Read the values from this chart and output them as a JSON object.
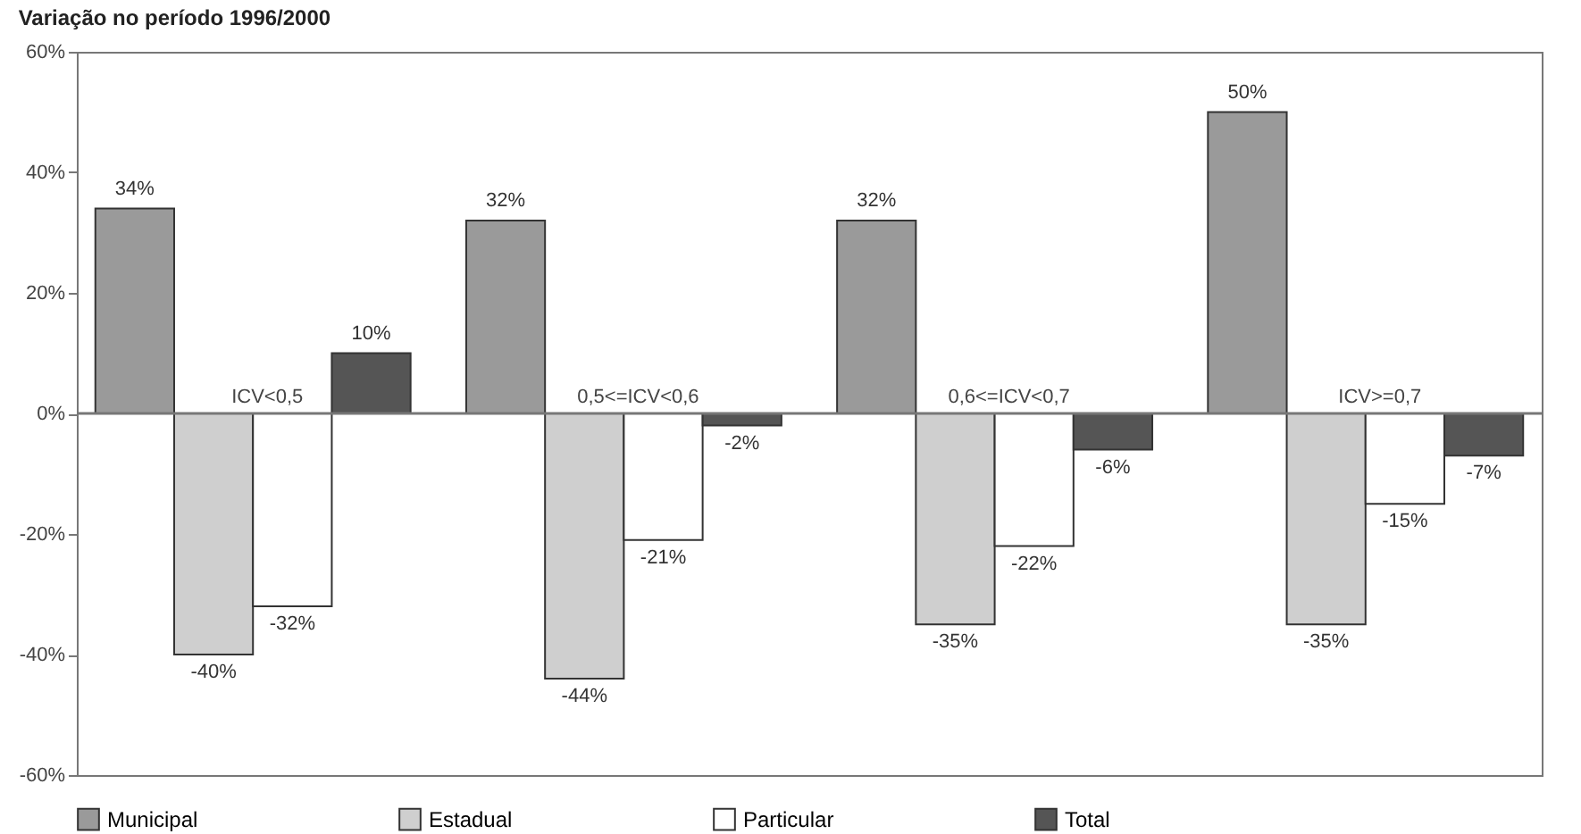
{
  "chart_data": {
    "type": "bar",
    "title": "Variação no período 1996/2000",
    "categories": [
      "ICV<0,5",
      "0,5<=ICV<0,6",
      "0,6<=ICV<0,7",
      "ICV>=0,7"
    ],
    "series": [
      {
        "name": "Municipal",
        "color": "#9a9a9a",
        "values": [
          34,
          32,
          32,
          50
        ],
        "value_labels": [
          "34%",
          "32%",
          "32%",
          "50%"
        ]
      },
      {
        "name": "Estadual",
        "color": "#cfcfcf",
        "values": [
          -40,
          -44,
          -35,
          -35
        ],
        "value_labels": [
          "-40%",
          "-44%",
          "-35%",
          "-35%"
        ]
      },
      {
        "name": "Particular",
        "color": "#ffffff",
        "values": [
          -32,
          -21,
          -22,
          -15
        ],
        "value_labels": [
          "-32%",
          "-21%",
          "-22%",
          "-15%"
        ]
      },
      {
        "name": "Total",
        "color": "#555555",
        "values": [
          10,
          -2,
          -6,
          -7
        ],
        "value_labels": [
          "10%",
          "-2%",
          "-6%",
          "-7%"
        ]
      }
    ],
    "ylim": [
      -60,
      60
    ],
    "yticks": [
      {
        "value": -60,
        "label": "-60%"
      },
      {
        "value": -40,
        "label": "-40%"
      },
      {
        "value": -20,
        "label": "-20%"
      },
      {
        "value": 0,
        "label": "0%"
      },
      {
        "value": 20,
        "label": "20%"
      },
      {
        "value": 40,
        "label": "40%"
      },
      {
        "value": 60,
        "label": "60%"
      }
    ],
    "grid": false,
    "legend": "bottom"
  }
}
